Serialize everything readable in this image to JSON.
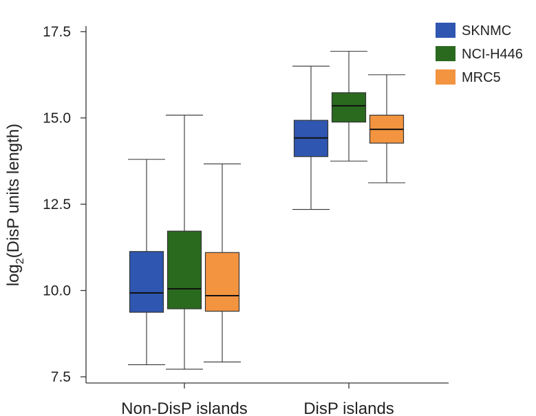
{
  "chart_data": {
    "type": "box",
    "ylabel": {
      "main": "log",
      "sub": "2",
      "rest": "(DisP units length)"
    },
    "ylim": [
      7.5,
      17.5
    ],
    "yticks": [
      "7.5",
      "10.0",
      "12.5",
      "15.0",
      "17.5"
    ],
    "categories": [
      "Non-DisP islands",
      "DisP islands"
    ],
    "legend_position": "top-right",
    "series": [
      {
        "name": "SKNMC",
        "color": "#2f56b0",
        "boxes": [
          {
            "whislo": 7.85,
            "q1": 9.37,
            "med": 9.93,
            "q3": 11.13,
            "whishi": 13.8
          },
          {
            "whislo": 12.35,
            "q1": 13.88,
            "med": 14.42,
            "q3": 14.93,
            "whishi": 16.5
          }
        ]
      },
      {
        "name": "NCI-H446",
        "color": "#2a6a1f",
        "boxes": [
          {
            "whislo": 7.72,
            "q1": 9.47,
            "med": 10.05,
            "q3": 11.72,
            "whishi": 15.08
          },
          {
            "whislo": 13.75,
            "q1": 14.88,
            "med": 15.35,
            "q3": 15.73,
            "whishi": 16.93
          }
        ]
      },
      {
        "name": "MRC5",
        "color": "#f39440",
        "boxes": [
          {
            "whislo": 7.93,
            "q1": 9.4,
            "med": 9.85,
            "q3": 11.1,
            "whishi": 13.67
          },
          {
            "whislo": 13.12,
            "q1": 14.27,
            "med": 14.67,
            "q3": 15.08,
            "whishi": 16.25
          }
        ]
      }
    ]
  }
}
